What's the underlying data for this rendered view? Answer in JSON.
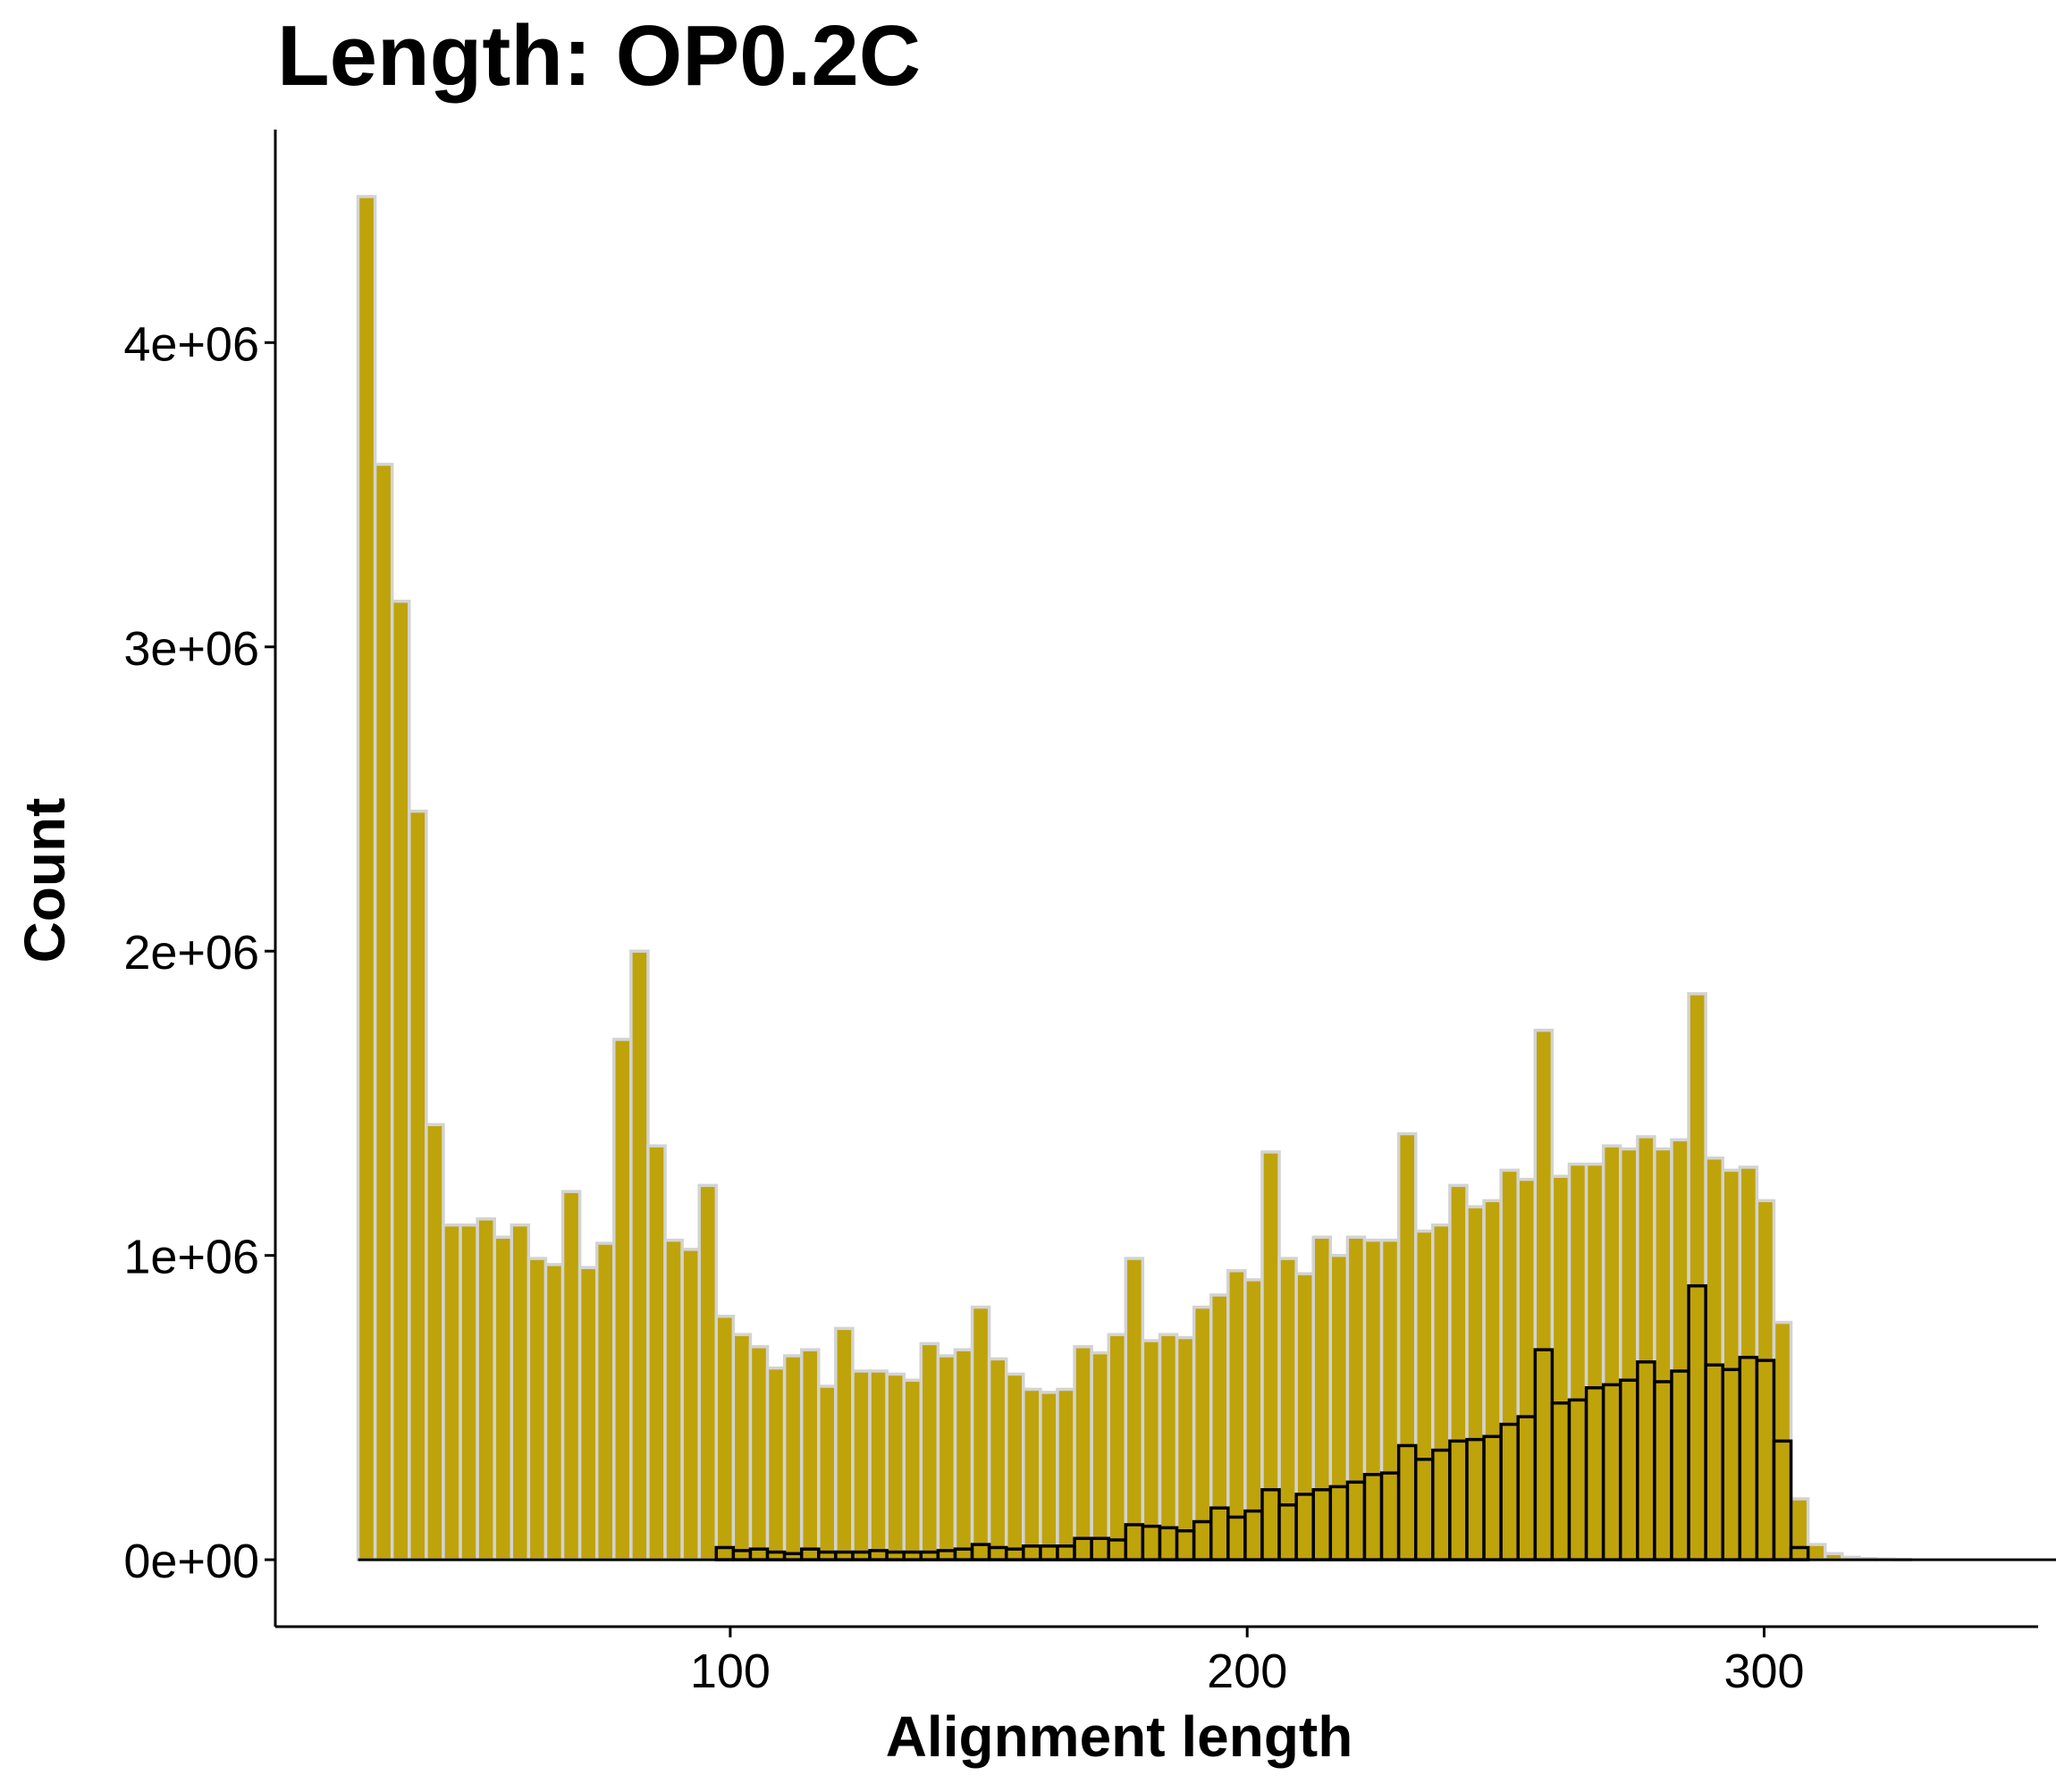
{
  "chart_data": {
    "type": "bar",
    "title": "Length: OP0.2C",
    "xlabel": "Alignment length",
    "ylabel": "Count",
    "xlim": [
      12,
      353
    ],
    "ylim": [
      -220000,
      4700000
    ],
    "x_ticks": [
      100,
      200,
      300
    ],
    "x_tick_labels": [
      "100",
      "200",
      "300"
    ],
    "y_ticks": [
      0,
      1000000,
      2000000,
      3000000,
      4000000
    ],
    "y_tick_labels": [
      "0e+00",
      "1e+06",
      "2e+06",
      "3e+06",
      "4e+06"
    ],
    "grid": false,
    "legend": "none",
    "bin_start": 28,
    "bin_width": 3.3,
    "series": [
      {
        "fill": "#BFA30A",
        "outline": "#D3D3D3",
        "values": [
          4480000,
          3600000,
          3150000,
          2460000,
          1430000,
          1100000,
          1100000,
          1120000,
          1060000,
          1100000,
          990000,
          970000,
          1210000,
          960000,
          1040000,
          1710000,
          2000000,
          1360000,
          1050000,
          1020000,
          1230000,
          800000,
          740000,
          700000,
          630000,
          670000,
          690000,
          570000,
          760000,
          620000,
          620000,
          610000,
          590000,
          710000,
          670000,
          690000,
          830000,
          660000,
          610000,
          560000,
          550000,
          560000,
          700000,
          680000,
          740000,
          990000,
          720000,
          740000,
          730000,
          830000,
          870000,
          950000,
          920000,
          1340000,
          990000,
          940000,
          1060000,
          1000000,
          1060000,
          1050000,
          1050000,
          1400000,
          1080000,
          1100000,
          1230000,
          1160000,
          1180000,
          1280000,
          1250000,
          1740000,
          1260000,
          1300000,
          1300000,
          1360000,
          1350000,
          1390000,
          1350000,
          1380000,
          1860000,
          1320000,
          1280000,
          1290000,
          1180000,
          780000,
          200000,
          50000,
          20000,
          8000,
          4000,
          2000,
          1000,
          0,
          0,
          0,
          0,
          0,
          0,
          0,
          0,
          0,
          0,
          0,
          0
        ]
      },
      {
        "fill": "#BFA30A",
        "outline": "#000000",
        "values": [
          0,
          0,
          0,
          0,
          0,
          0,
          0,
          0,
          0,
          0,
          0,
          0,
          0,
          0,
          0,
          0,
          0,
          0,
          0,
          0,
          0,
          40000,
          30000,
          35000,
          25000,
          20000,
          35000,
          25000,
          25000,
          25000,
          30000,
          25000,
          25000,
          25000,
          30000,
          35000,
          50000,
          40000,
          35000,
          45000,
          45000,
          45000,
          70000,
          70000,
          65000,
          115000,
          110000,
          105000,
          95000,
          125000,
          170000,
          140000,
          160000,
          230000,
          180000,
          215000,
          230000,
          240000,
          255000,
          280000,
          285000,
          375000,
          330000,
          360000,
          390000,
          395000,
          405000,
          445000,
          470000,
          690000,
          515000,
          525000,
          565000,
          575000,
          590000,
          650000,
          585000,
          620000,
          900000,
          640000,
          625000,
          665000,
          655000,
          390000,
          40000,
          0,
          0,
          0,
          0,
          0,
          0,
          0,
          0,
          0,
          0,
          0,
          0,
          0,
          0,
          0,
          0,
          0,
          0
        ]
      }
    ]
  }
}
